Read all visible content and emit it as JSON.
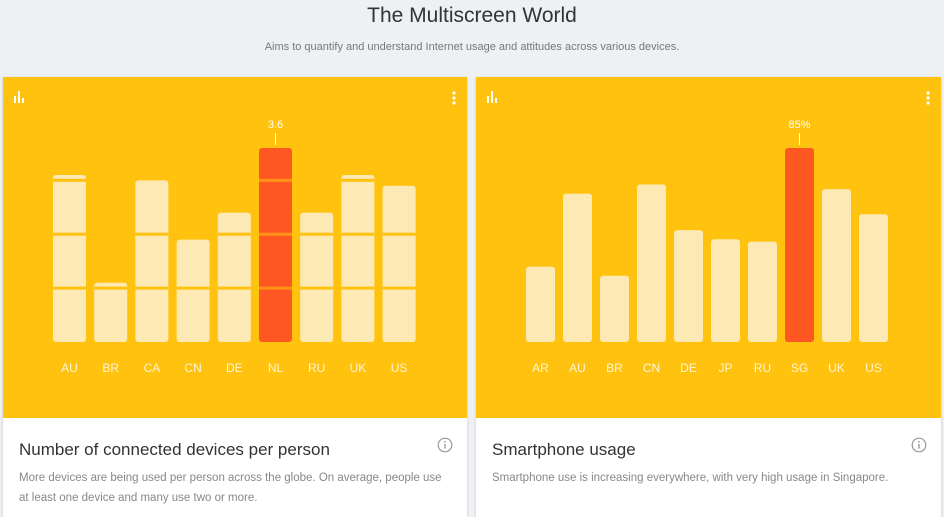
{
  "page": {
    "title": "The Multiscreen World",
    "subtitle": "Aims to quantify and understand Internet usage and attitudes across various devices."
  },
  "colors": {
    "card_bg": "#ffc20e",
    "bar": "#fde9b3",
    "highlight": "#ff5722",
    "label": "#fff5d6"
  },
  "icons": {
    "chart": "bar-chart-icon",
    "menu": "more-vert-icon",
    "info": "info-icon"
  },
  "cards": [
    {
      "title": "Number of connected devices per person",
      "description": "More devices are being used per person across the globe. On average, people use at least one device and many use two or more."
    },
    {
      "title": "Smartphone usage",
      "description": "Smartphone use is increasing everywhere, with very high usage in Singapore."
    }
  ],
  "chart_data": [
    {
      "type": "bar",
      "categories": [
        "AU",
        "BR",
        "CA",
        "CN",
        "DE",
        "NL",
        "RU",
        "UK",
        "US"
      ],
      "values": [
        3.1,
        1.1,
        3.0,
        1.9,
        2.4,
        3.6,
        2.4,
        3.1,
        2.9
      ],
      "highlight_index": 5,
      "data_labels": {
        "5": "3.6"
      },
      "ylim": [
        0,
        3.6
      ],
      "segment_dividers": [
        1,
        2,
        3
      ]
    },
    {
      "type": "bar",
      "categories": [
        "AR",
        "AU",
        "BR",
        "CN",
        "DE",
        "JP",
        "RU",
        "SG",
        "UK",
        "US"
      ],
      "values": [
        33,
        65,
        29,
        69,
        49,
        45,
        44,
        85,
        67,
        56
      ],
      "unit": "%",
      "highlight_index": 7,
      "data_labels": {
        "7": "85%"
      },
      "ylim": [
        0,
        85
      ]
    }
  ]
}
